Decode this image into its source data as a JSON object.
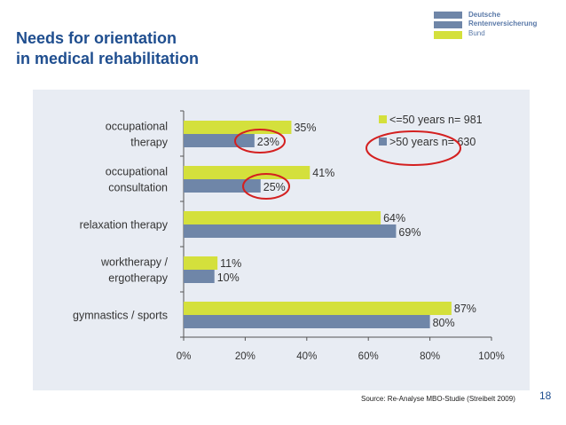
{
  "slide": {
    "title_line1": "Needs for orientation",
    "title_line2": "in medical rehabilitation",
    "logo_line1": "Deutsche",
    "logo_line2": "Rentenversicherung",
    "logo_line3": "Bund",
    "source": "Source: Re-Analyse MBO-Studie (Streibelt 2009)",
    "page_number": "18"
  },
  "colors": {
    "title": "#1f4e8f",
    "series_young": "#d4e03c",
    "series_old": "#6f86a8",
    "highlight_circle": "#d42020",
    "panel_bg": "#e8ecf3"
  },
  "chart_data": {
    "type": "bar",
    "orientation": "horizontal",
    "categories": [
      [
        "occupational",
        "therapy"
      ],
      [
        "occupational",
        "consultation"
      ],
      [
        "relaxation therapy"
      ],
      [
        "worktherapy /",
        "ergotherapy"
      ],
      [
        "gymnastics / sports"
      ]
    ],
    "series": [
      {
        "name": "<=50 years n= 981",
        "values": [
          35,
          41,
          64,
          11,
          87
        ],
        "labels": [
          "35%",
          "41%",
          "64%",
          "11%",
          "87%"
        ]
      },
      {
        "name": ">50 years n= 630",
        "values": [
          23,
          25,
          69,
          10,
          80
        ],
        "labels": [
          "23%",
          "25%",
          "69%",
          "10%",
          "80%"
        ]
      }
    ],
    "xlim": [
      0,
      100
    ],
    "xticks": [
      "0%",
      "20%",
      "40%",
      "60%",
      "80%",
      "100%"
    ],
    "legend_position": "top-right",
    "grid": false,
    "highlighted": [
      "23%",
      "25%",
      ">50 years"
    ]
  }
}
